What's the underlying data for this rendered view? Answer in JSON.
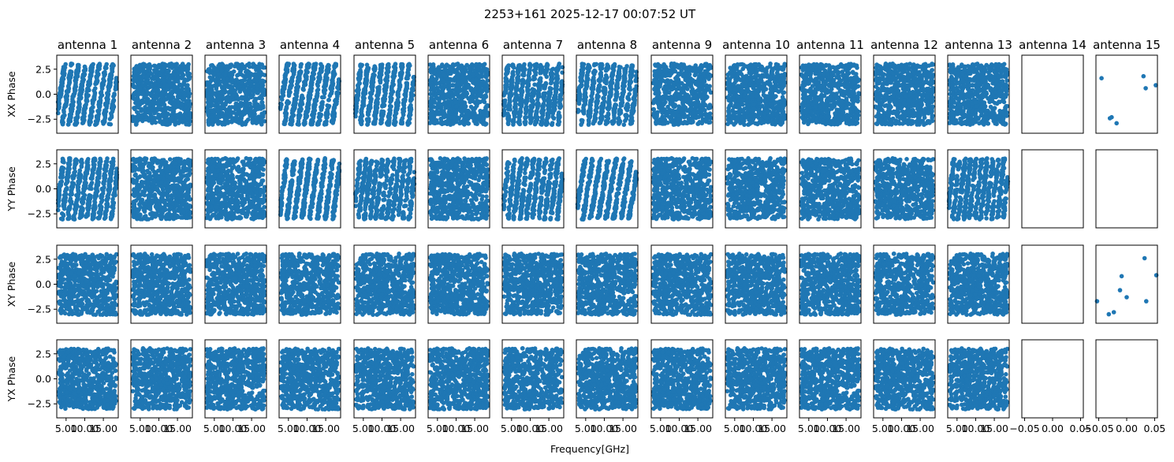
{
  "chart_data": {
    "type": "scatter",
    "title": "2253+161 2025-12-17 00:07:52 UT",
    "xlabel": "Frequency[GHz]",
    "columns": [
      "antenna 1",
      "antenna 2",
      "antenna 3",
      "antenna 4",
      "antenna 5",
      "antenna 6",
      "antenna 7",
      "antenna 8",
      "antenna 9",
      "antenna 10",
      "antenna 11",
      "antenna 12",
      "antenna 13",
      "antenna 14",
      "antenna 15"
    ],
    "rows": [
      {
        "ylabel": "XX Phase"
      },
      {
        "ylabel": "YY Phase"
      },
      {
        "ylabel": "XY Phase"
      },
      {
        "ylabel": "YX Phase"
      }
    ],
    "ylim": [
      -3.9,
      3.9
    ],
    "yticks": [
      2.5,
      0.0,
      -2.5
    ],
    "ytick_labels": [
      "2.5",
      "0.0",
      "−2.5"
    ],
    "marker_color": "#1f77b4",
    "grid": false,
    "panel_styles": [
      [
        "stripes",
        "random",
        "random",
        "stripes",
        "stripes",
        "random",
        "stripes",
        "stripes",
        "random",
        "random",
        "random",
        "random",
        "random",
        "empty",
        "sparse"
      ],
      [
        "stripes",
        "random",
        "random",
        "stripes",
        "stripes",
        "random",
        "stripes",
        "stripes",
        "random",
        "random",
        "random",
        "random",
        "stripes",
        "empty",
        "empty"
      ],
      [
        "random",
        "random",
        "random",
        "random",
        "random",
        "random",
        "random",
        "random",
        "random",
        "random",
        "random",
        "random",
        "random",
        "empty",
        "sparse"
      ],
      [
        "random",
        "random",
        "random",
        "random",
        "random",
        "random",
        "random",
        "random",
        "random",
        "random",
        "random",
        "random",
        "random",
        "empty",
        "empty"
      ]
    ],
    "freq_xlim": [
      2.5,
      19.0
    ],
    "freq_xticks": [
      5.0,
      10.0,
      15.0
    ],
    "freq_xtick_labels": [
      "5.00",
      "10.00",
      "15.00"
    ],
    "empty_xlim": [
      -0.055,
      0.055
    ],
    "empty_xticks": [
      -0.05,
      0.0,
      0.05
    ],
    "empty_xtick_labels": [
      "−0.05",
      "0.00",
      "0.05"
    ],
    "sparse_points": {
      "XX Phase": [
        {
          "x": -0.045,
          "y": 1.6
        },
        {
          "x": -0.03,
          "y": -2.4
        },
        {
          "x": -0.027,
          "y": -2.3
        },
        {
          "x": -0.018,
          "y": -2.9
        },
        {
          "x": 0.03,
          "y": 1.8
        },
        {
          "x": 0.034,
          "y": 0.6
        },
        {
          "x": 0.052,
          "y": 0.9
        }
      ],
      "XY Phase": [
        {
          "x": -0.053,
          "y": -1.7
        },
        {
          "x": -0.032,
          "y": -3.0
        },
        {
          "x": -0.023,
          "y": -2.8
        },
        {
          "x": -0.012,
          "y": -0.6
        },
        {
          "x": -0.009,
          "y": 0.8
        },
        {
          "x": 0.0,
          "y": -1.3
        },
        {
          "x": 0.032,
          "y": 2.6
        },
        {
          "x": 0.035,
          "y": -1.7
        },
        {
          "x": 0.053,
          "y": 0.9
        }
      ]
    }
  }
}
